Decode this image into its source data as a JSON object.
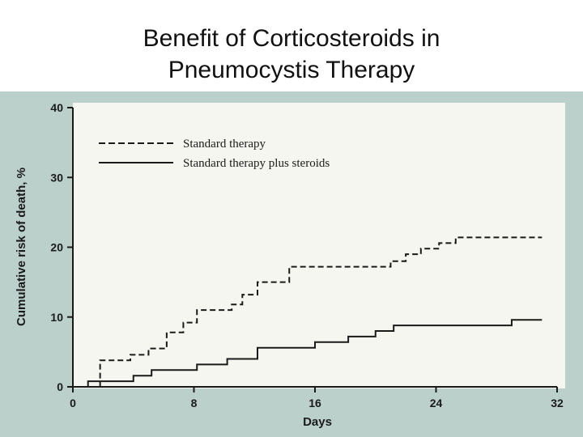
{
  "slide": {
    "title_line1": "Benefit of Corticosteroids in",
    "title_line2": "Pneumocystis Therapy"
  },
  "colors": {
    "scan_background": "#bcd0cb",
    "plot_background": "#f6f6f0",
    "ink": "#1a1a1a",
    "slide_background": "#ffffff"
  },
  "chart_data": {
    "type": "line",
    "step": true,
    "xlabel": "Days",
    "ylabel": "Cumulative risk of death, %",
    "xlim": [
      0,
      32
    ],
    "ylim": [
      0,
      40
    ],
    "xticks": [
      0,
      8,
      16,
      24,
      32
    ],
    "yticks": [
      0,
      10,
      20,
      30,
      40
    ],
    "grid": false,
    "legend_position": "top-left",
    "series": [
      {
        "name": "Standard therapy",
        "line_style": "dashed",
        "x": [
          0,
          1.8,
          3.8,
          5.0,
          6.2,
          7.3,
          8.2,
          10.5,
          11.2,
          12.2,
          14.3,
          21.0,
          22.0,
          23.0,
          24.2,
          25.3,
          26.3,
          31.0
        ],
        "y": [
          0,
          3.8,
          4.6,
          5.5,
          7.8,
          9.2,
          11.0,
          11.8,
          13.2,
          15.0,
          17.2,
          18.0,
          19.0,
          19.8,
          20.6,
          21.4,
          21.4,
          21.4
        ]
      },
      {
        "name": "Standard therapy plus steroids",
        "line_style": "solid",
        "x": [
          0,
          1.0,
          4.0,
          5.2,
          8.2,
          10.2,
          12.2,
          16.0,
          18.2,
          20.0,
          21.2,
          29.0,
          31.0
        ],
        "y": [
          0,
          0.8,
          1.6,
          2.4,
          3.2,
          4.0,
          5.6,
          6.4,
          7.2,
          8.0,
          8.8,
          9.6,
          9.6
        ]
      }
    ]
  }
}
